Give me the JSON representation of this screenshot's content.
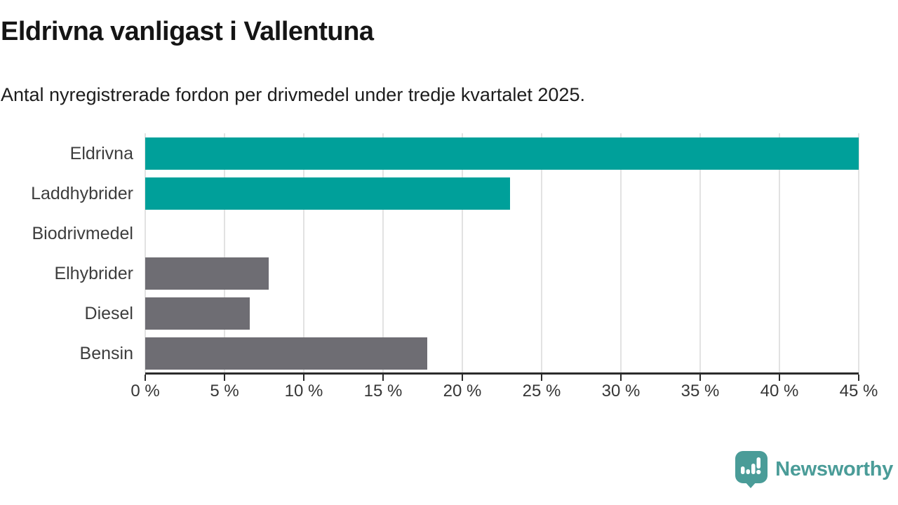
{
  "header": {
    "title": "Eldrivna vanligast i Vallentuna",
    "subtitle": "Antal nyregistrerade fordon per drivmedel under tredje kvartalet 2025."
  },
  "chart_data": {
    "type": "bar",
    "orientation": "horizontal",
    "title": "Eldrivna vanligast i Vallentuna",
    "subtitle": "Antal nyregistrerade fordon per drivmedel under tredje kvartalet 2025.",
    "categories": [
      "Eldrivna",
      "Laddhybrider",
      "Biodrivmedel",
      "Elhybrider",
      "Diesel",
      "Bensin"
    ],
    "values": [
      45.0,
      23.0,
      0,
      7.8,
      6.6,
      17.8
    ],
    "unit": "%",
    "xlim": [
      0,
      45
    ],
    "x_ticks": [
      0,
      5,
      10,
      15,
      20,
      25,
      30,
      35,
      40,
      45
    ],
    "x_tick_labels": [
      "0 %",
      "5 %",
      "10 %",
      "15 %",
      "20 %",
      "25 %",
      "30 %",
      "35 %",
      "40 %",
      "45 %"
    ],
    "bar_colors": [
      "#00a09a",
      "#00a09a",
      "#6e6d73",
      "#6e6d73",
      "#6e6d73",
      "#6e6d73"
    ],
    "grid": true,
    "legend": false,
    "xlabel": "",
    "ylabel": ""
  },
  "colors": {
    "highlight": "#00a09a",
    "default_bar": "#6e6d73",
    "gridline": "#e2e2e2",
    "axis": "#2b2b2b",
    "text": "#363636",
    "logo": "#4a9c98"
  },
  "footer": {
    "brand": "Newsworthy"
  }
}
